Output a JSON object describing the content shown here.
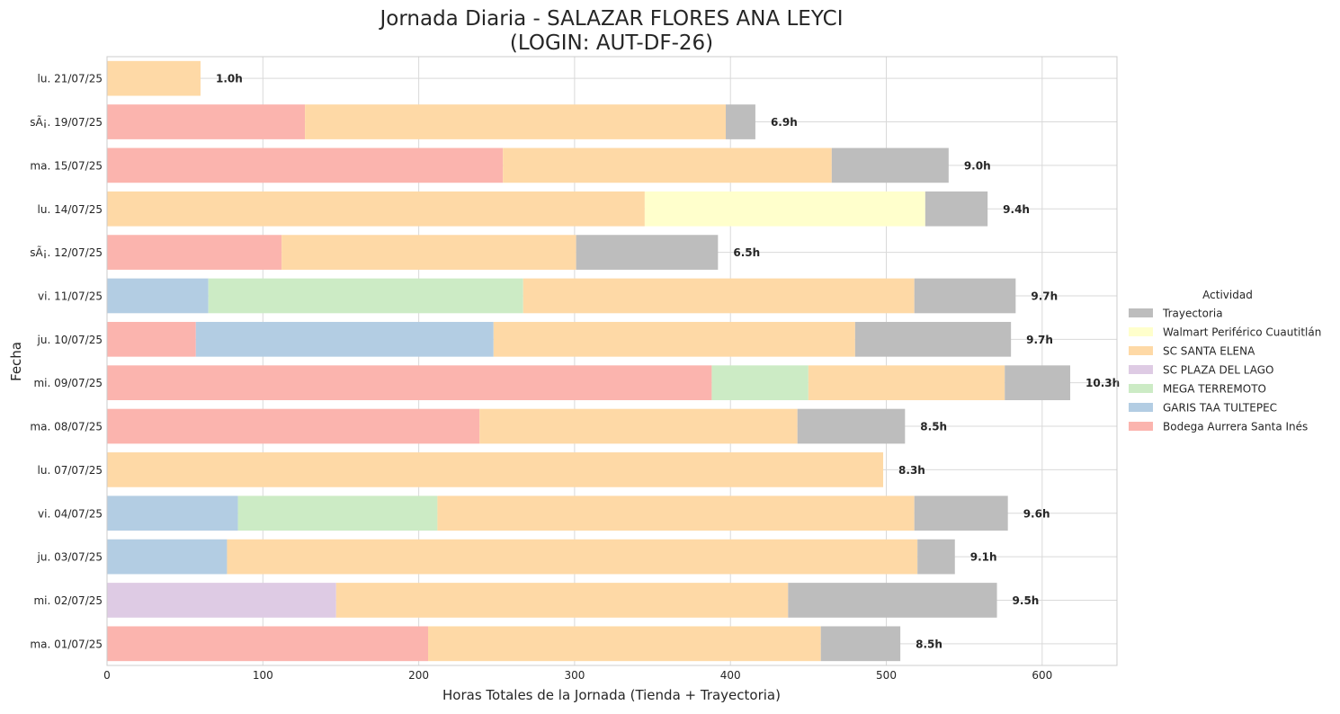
{
  "chart_data": {
    "type": "bar",
    "orientation": "horizontal",
    "stacked": true,
    "title_line1": "Jornada Diaria - SALAZAR FLORES ANA LEYCI",
    "title_line2": "(LOGIN: AUT-DF-26)",
    "xlabel": "Horas Totales de la Jornada (Tienda + Trayectoria)",
    "ylabel": "Fecha",
    "xlim": [
      0,
      648
    ],
    "xticks": [
      0,
      100,
      200,
      300,
      400,
      500,
      600
    ],
    "grid": true,
    "legend": {
      "title": "Actividad",
      "placement": "center-right outside"
    },
    "categories": [
      "ma. 01/07/25",
      "mi. 02/07/25",
      "ju. 03/07/25",
      "vi. 04/07/25",
      "lu. 07/07/25",
      "ma. 08/07/25",
      "mi. 09/07/25",
      "ju. 10/07/25",
      "vi. 11/07/25",
      "sÃ¡. 12/07/25",
      "lu. 14/07/25",
      "ma. 15/07/25",
      "sÃ¡. 19/07/25",
      "lu. 21/07/25"
    ],
    "totals_labels": [
      "8.5h",
      "9.5h",
      "9.1h",
      "9.6h",
      "8.3h",
      "8.5h",
      "10.3h",
      "9.7h",
      "9.7h",
      "6.5h",
      "9.4h",
      "9.0h",
      "6.9h",
      "1.0h"
    ],
    "totals": [
      509,
      571,
      544,
      578,
      498,
      512,
      618,
      580,
      583,
      392,
      565,
      540,
      416,
      60
    ],
    "series": [
      {
        "name": "Bodega Aurrera Santa Inés",
        "color": "#fbb4ae",
        "values": [
          206,
          0,
          0,
          0,
          0,
          239,
          388,
          57,
          0,
          112,
          0,
          254,
          127,
          0
        ]
      },
      {
        "name": "GARIS TAA TULTEPEC",
        "color": "#b3cde3",
        "values": [
          0,
          0,
          77,
          84,
          0,
          0,
          0,
          191,
          65,
          0,
          0,
          0,
          0,
          0
        ]
      },
      {
        "name": "MEGA TERREMOTO",
        "color": "#ccebc5",
        "values": [
          0,
          0,
          0,
          128,
          0,
          0,
          62,
          0,
          202,
          0,
          0,
          0,
          0,
          0
        ]
      },
      {
        "name": "SC PLAZA DEL LAGO",
        "color": "#decbe4",
        "values": [
          0,
          147,
          0,
          0,
          0,
          0,
          0,
          0,
          0,
          0,
          0,
          0,
          0,
          0
        ]
      },
      {
        "name": "SC SANTA ELENA",
        "color": "#fed9a6",
        "values": [
          252,
          290,
          443,
          306,
          498,
          204,
          126,
          232,
          251,
          189,
          345,
          211,
          270,
          60
        ]
      },
      {
        "name": "Walmart Periférico Cuautitlán",
        "color": "#ffffcc",
        "values": [
          0,
          0,
          0,
          0,
          0,
          0,
          0,
          0,
          0,
          0,
          180,
          0,
          0,
          0
        ]
      },
      {
        "name": "Trayectoria",
        "color": "#bdbdbd",
        "values": [
          51,
          134,
          24,
          60,
          0,
          69,
          42,
          100,
          65,
          91,
          40,
          75,
          19,
          0
        ]
      }
    ],
    "legend_order": [
      "Trayectoria",
      "Walmart Periférico Cuautitlán",
      "SC SANTA ELENA",
      "SC PLAZA DEL LAGO",
      "MEGA TERREMOTO",
      "GARIS TAA TULTEPEC",
      "Bodega Aurrera Santa Inés"
    ]
  }
}
